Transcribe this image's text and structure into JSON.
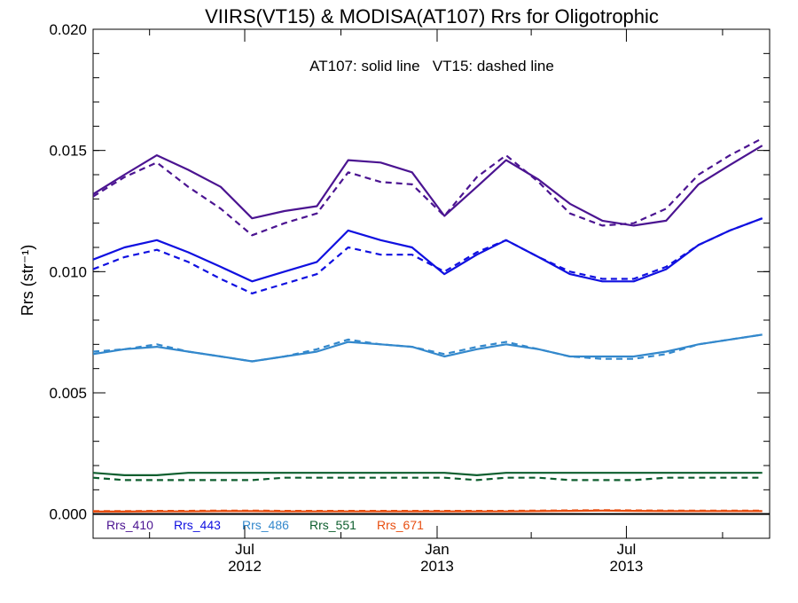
{
  "chart_data": {
    "type": "line",
    "title": "VIIRS(VT15) & MODISA(AT107)  Rrs for Oligotrophic",
    "annotation": "AT107: solid line   VT15: dashed line",
    "xlabel": "",
    "ylabel": "Rrs (str⁻¹)",
    "ylim": [
      -0.001,
      0.02
    ],
    "yticks": [
      0.0,
      0.005,
      0.01,
      0.015,
      0.02
    ],
    "ytick_labels": [
      "0.000",
      "0.005",
      "0.010",
      "0.015",
      "0.020"
    ],
    "xlim": [
      "2012-02-07",
      "2013-11-15"
    ],
    "xtick_labels": [
      {
        "month": "Jul",
        "year": "2012",
        "date": "2012-07-01"
      },
      {
        "month": "Jan",
        "year": "2013",
        "date": "2013-01-01"
      },
      {
        "month": "Jul",
        "year": "2013",
        "date": "2013-07-01"
      }
    ],
    "minor_xticks": [
      "2012-04-01",
      "2012-10-01",
      "2013-04-01",
      "2013-10-01"
    ],
    "zero_line": true,
    "x": [
      "2012-02-07",
      "2012-03-08",
      "2012-04-08",
      "2012-05-08",
      "2012-06-08",
      "2012-07-08",
      "2012-08-08",
      "2012-09-08",
      "2012-10-08",
      "2012-11-08",
      "2012-12-08",
      "2013-01-08",
      "2013-02-08",
      "2013-03-08",
      "2013-04-08",
      "2013-05-08",
      "2013-06-08",
      "2013-07-08",
      "2013-08-08",
      "2013-09-08",
      "2013-10-08",
      "2013-11-08"
    ],
    "series": [
      {
        "name": "Rrs_410",
        "sensor": "AT107",
        "color": "#4b1491",
        "dash": "solid",
        "values": [
          0.0132,
          0.014,
          0.0148,
          0.0142,
          0.0135,
          0.0122,
          0.0125,
          0.0127,
          0.0146,
          0.0145,
          0.0141,
          0.0123,
          0.0135,
          0.0146,
          0.0138,
          0.0128,
          0.0121,
          0.0119,
          0.0121,
          0.0136,
          0.0144,
          0.0152
        ]
      },
      {
        "name": "Rrs_410",
        "sensor": "VT15",
        "color": "#4b1491",
        "dash": "dashed",
        "values": [
          0.0131,
          0.0139,
          0.0145,
          0.0135,
          0.0126,
          0.0115,
          0.012,
          0.0124,
          0.0141,
          0.0137,
          0.0136,
          0.0123,
          0.0139,
          0.0148,
          0.0137,
          0.0124,
          0.0119,
          0.012,
          0.0126,
          0.014,
          0.0148,
          0.0155
        ]
      },
      {
        "name": "Rrs_443",
        "sensor": "AT107",
        "color": "#1010e0",
        "dash": "solid",
        "values": [
          0.0105,
          0.011,
          0.0113,
          0.0108,
          0.0102,
          0.0096,
          0.01,
          0.0104,
          0.0117,
          0.0113,
          0.011,
          0.0099,
          0.0107,
          0.0113,
          0.0106,
          0.0099,
          0.0096,
          0.0096,
          0.0101,
          0.0111,
          0.0117,
          0.0122
        ]
      },
      {
        "name": "Rrs_443",
        "sensor": "VT15",
        "color": "#1010e0",
        "dash": "dashed",
        "values": [
          0.0101,
          0.0106,
          0.0109,
          0.0104,
          0.0097,
          0.0091,
          0.0095,
          0.0099,
          0.011,
          0.0107,
          0.0107,
          0.01,
          0.0108,
          0.0113,
          0.0106,
          0.01,
          0.0097,
          0.0097,
          0.0102,
          0.0111,
          0.0117,
          0.0122
        ]
      },
      {
        "name": "Rrs_486",
        "sensor": "AT107",
        "color": "#3388cc",
        "dash": "solid",
        "values": [
          0.0066,
          0.0068,
          0.0069,
          0.0067,
          0.0065,
          0.0063,
          0.0065,
          0.0067,
          0.0071,
          0.007,
          0.0069,
          0.0065,
          0.0068,
          0.007,
          0.0068,
          0.0065,
          0.0065,
          0.0065,
          0.0067,
          0.007,
          0.0072,
          0.0074
        ]
      },
      {
        "name": "Rrs_486",
        "sensor": "VT15",
        "color": "#3388cc",
        "dash": "dashed",
        "values": [
          0.0067,
          0.0068,
          0.007,
          0.0067,
          0.0065,
          0.0063,
          0.0065,
          0.0068,
          0.0072,
          0.007,
          0.0069,
          0.0066,
          0.0069,
          0.0071,
          0.0068,
          0.0065,
          0.0064,
          0.0064,
          0.0066,
          0.007,
          0.0072,
          0.0074
        ]
      },
      {
        "name": "Rrs_551",
        "sensor": "AT107",
        "color": "#0d5e2e",
        "dash": "solid",
        "values": [
          0.0017,
          0.0016,
          0.0016,
          0.0017,
          0.0017,
          0.0017,
          0.0017,
          0.0017,
          0.0017,
          0.0017,
          0.0017,
          0.0017,
          0.0016,
          0.0017,
          0.0017,
          0.0017,
          0.0017,
          0.0017,
          0.0017,
          0.0017,
          0.0017,
          0.0017
        ]
      },
      {
        "name": "Rrs_551",
        "sensor": "VT15",
        "color": "#0d5e2e",
        "dash": "dashed",
        "values": [
          0.0015,
          0.0014,
          0.0014,
          0.0014,
          0.0014,
          0.0014,
          0.0015,
          0.0015,
          0.0015,
          0.0015,
          0.0015,
          0.0015,
          0.0014,
          0.0015,
          0.0015,
          0.0014,
          0.0014,
          0.0014,
          0.0015,
          0.0015,
          0.0015,
          0.0015
        ]
      },
      {
        "name": "Rrs_671",
        "sensor": "AT107",
        "color": "#e84e10",
        "dash": "solid",
        "values": [
          0.0001,
          0.0001,
          0.00011,
          0.00011,
          0.00012,
          0.00012,
          0.00011,
          0.00011,
          0.00011,
          0.00011,
          0.00011,
          0.00011,
          0.00011,
          0.00011,
          0.00012,
          0.00013,
          0.00014,
          0.00013,
          0.00012,
          0.00012,
          0.00012,
          0.00012
        ]
      },
      {
        "name": "Rrs_671",
        "sensor": "VT15",
        "color": "#e84e10",
        "dash": "dashed",
        "values": [
          0.00012,
          0.00012,
          0.00013,
          0.00013,
          0.00014,
          0.00014,
          0.00013,
          0.00013,
          0.00013,
          0.00013,
          0.00013,
          0.00013,
          0.00013,
          0.00013,
          0.00014,
          0.00015,
          0.00016,
          0.00015,
          0.00014,
          0.00014,
          0.00014,
          0.00014
        ]
      }
    ],
    "legend": [
      {
        "label": "Rrs_410",
        "color": "#4b1491"
      },
      {
        "label": "Rrs_443",
        "color": "#1010e0"
      },
      {
        "label": "Rrs_486",
        "color": "#3388cc"
      },
      {
        "label": "Rrs_551",
        "color": "#0d5e2e"
      },
      {
        "label": "Rrs_671",
        "color": "#e84e10"
      }
    ],
    "legend_position": "bottom-left",
    "grid": false
  }
}
